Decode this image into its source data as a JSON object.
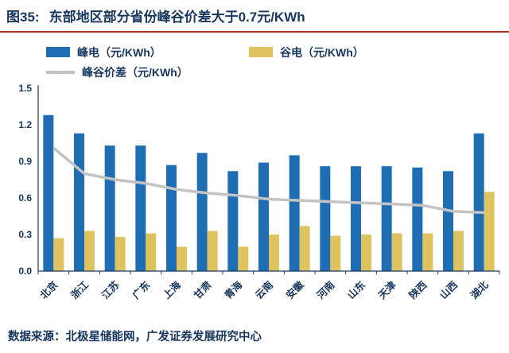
{
  "title": {
    "fig_label": "图35:",
    "text": "东部地区部分省份峰谷价差大于0.7元/KWh"
  },
  "colors": {
    "navy_text": "#17375E",
    "accent_red": "#A93226",
    "peak_blue": "#1F6EB4",
    "valley_yellow": "#DFC35F",
    "diff_gray": "#C3C3C3"
  },
  "legend": [
    {
      "label": "峰电（元/KWh）",
      "type": "bar",
      "color": "#1F6EB4"
    },
    {
      "label": "谷电（元/KWh）",
      "type": "bar",
      "color": "#DFC35F"
    },
    {
      "label": "峰谷价差（元/KWh）",
      "type": "line",
      "color": "#C3C3C3"
    }
  ],
  "chart_data": {
    "type": "bar",
    "title": "东部地区部分省份峰谷价差大于0.7元/KWh",
    "xlabel": "",
    "ylabel": "",
    "ylim": [
      0,
      1.5
    ],
    "yticks": [
      0.0,
      0.3,
      0.6,
      0.9,
      1.2,
      1.5
    ],
    "grid": false,
    "legend_position": "top",
    "categories": [
      "北京",
      "浙江",
      "江苏",
      "广东",
      "上海",
      "甘肃",
      "青海",
      "云南",
      "安徽",
      "河南",
      "山东",
      "天津",
      "陕西",
      "山西",
      "湖北"
    ],
    "series": [
      {
        "name": "峰电（元/KWh）",
        "render": "bar",
        "color": "#1F6EB4",
        "values": [
          1.28,
          1.13,
          1.03,
          1.03,
          0.87,
          0.97,
          0.82,
          0.89,
          0.95,
          0.86,
          0.86,
          0.86,
          0.85,
          0.82,
          1.13
        ]
      },
      {
        "name": "谷电（元/KWh）",
        "render": "bar",
        "color": "#DFC35F",
        "values": [
          0.27,
          0.33,
          0.28,
          0.31,
          0.2,
          0.33,
          0.2,
          0.3,
          0.37,
          0.29,
          0.3,
          0.31,
          0.31,
          0.33,
          0.65
        ]
      },
      {
        "name": "峰谷价差（元/KWh）",
        "render": "line",
        "color": "#C3C3C3",
        "values": [
          1.01,
          0.8,
          0.75,
          0.72,
          0.67,
          0.64,
          0.62,
          0.59,
          0.58,
          0.57,
          0.56,
          0.55,
          0.54,
          0.49,
          0.48
        ]
      }
    ]
  },
  "footer": {
    "text": "数据来源：北极星储能网，广发证券发展研究中心"
  }
}
